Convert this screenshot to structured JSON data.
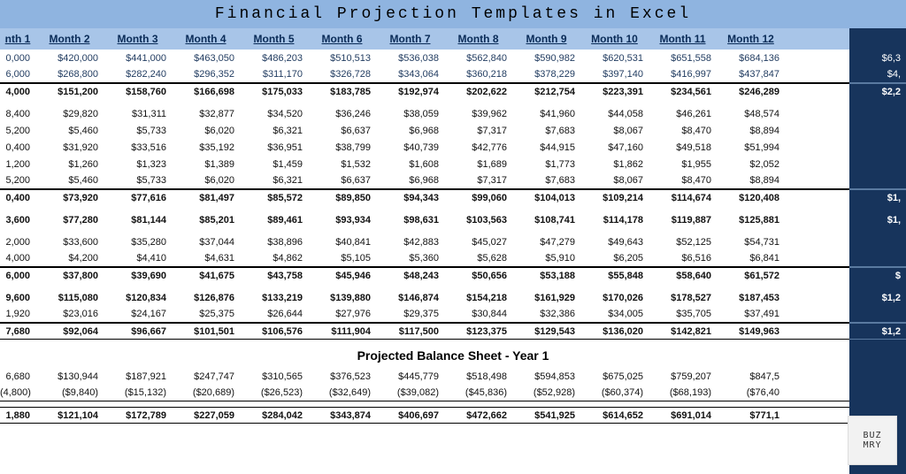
{
  "title": "Financial Projection Templates in Excel",
  "colors": {
    "title_bg": "#8fb4e0",
    "header_bg": "#a8c5e8",
    "right_panel_bg": "#17345c",
    "header_text": "#092b57"
  },
  "font": {
    "title_family": "Courier New",
    "title_size": 18,
    "body_size": 11,
    "header_size": 12
  },
  "months": [
    "nth 1",
    "Month 2",
    "Month 3",
    "Month 4",
    "Month 5",
    "Month 6",
    "Month 7",
    "Month 8",
    "Month 9",
    "Month 10",
    "Month 11",
    "Month 12"
  ],
  "section2_title": "Projected Balance Sheet - Year 1",
  "logo_text": "BUZ\nMRY",
  "rows_main": [
    {
      "c": [
        "0,000",
        "$420,000",
        "$441,000",
        "$463,050",
        "$486,203",
        "$510,513",
        "$536,038",
        "$562,840",
        "$590,982",
        "$620,531",
        "$651,558",
        "$684,136"
      ],
      "r": "$6,3",
      "blue": true
    },
    {
      "c": [
        "6,000",
        "$268,800",
        "$282,240",
        "$296,352",
        "$311,170",
        "$326,728",
        "$343,064",
        "$360,218",
        "$378,229",
        "$397,140",
        "$416,997",
        "$437,847"
      ],
      "r": "$4,",
      "blue": true,
      "bb": true
    },
    {
      "c": [
        "4,000",
        "$151,200",
        "$158,760",
        "$166,698",
        "$175,033",
        "$183,785",
        "$192,974",
        "$202,622",
        "$212,754",
        "$223,391",
        "$234,561",
        "$246,289"
      ],
      "r": "$2,2",
      "bold": true,
      "bt": true,
      "gapAfter": 6
    },
    {
      "c": [
        "8,400",
        "$29,820",
        "$31,311",
        "$32,877",
        "$34,520",
        "$36,246",
        "$38,059",
        "$39,962",
        "$41,960",
        "$44,058",
        "$46,261",
        "$48,574"
      ],
      "r": ""
    },
    {
      "c": [
        "5,200",
        "$5,460",
        "$5,733",
        "$6,020",
        "$6,321",
        "$6,637",
        "$6,968",
        "$7,317",
        "$7,683",
        "$8,067",
        "$8,470",
        "$8,894"
      ],
      "r": ""
    },
    {
      "c": [
        "0,400",
        "$31,920",
        "$33,516",
        "$35,192",
        "$36,951",
        "$38,799",
        "$40,739",
        "$42,776",
        "$44,915",
        "$47,160",
        "$49,518",
        "$51,994"
      ],
      "r": ""
    },
    {
      "c": [
        "1,200",
        "$1,260",
        "$1,323",
        "$1,389",
        "$1,459",
        "$1,532",
        "$1,608",
        "$1,689",
        "$1,773",
        "$1,862",
        "$1,955",
        "$2,052"
      ],
      "r": ""
    },
    {
      "c": [
        "5,200",
        "$5,460",
        "$5,733",
        "$6,020",
        "$6,321",
        "$6,637",
        "$6,968",
        "$7,317",
        "$7,683",
        "$8,067",
        "$8,470",
        "$8,894"
      ],
      "r": "",
      "bb": true
    },
    {
      "c": [
        "0,400",
        "$73,920",
        "$77,616",
        "$81,497",
        "$85,572",
        "$89,850",
        "$94,343",
        "$99,060",
        "$104,013",
        "$109,214",
        "$114,674",
        "$120,408"
      ],
      "r": "$1,",
      "bold": true,
      "bt": true,
      "gapAfter": 6
    },
    {
      "c": [
        "3,600",
        "$77,280",
        "$81,144",
        "$85,201",
        "$89,461",
        "$93,934",
        "$98,631",
        "$103,563",
        "$108,741",
        "$114,178",
        "$119,887",
        "$125,881"
      ],
      "r": "$1,",
      "bold": true,
      "gapAfter": 6
    },
    {
      "c": [
        "2,000",
        "$33,600",
        "$35,280",
        "$37,044",
        "$38,896",
        "$40,841",
        "$42,883",
        "$45,027",
        "$47,279",
        "$49,643",
        "$52,125",
        "$54,731"
      ],
      "r": ""
    },
    {
      "c": [
        "4,000",
        "$4,200",
        "$4,410",
        "$4,631",
        "$4,862",
        "$5,105",
        "$5,360",
        "$5,628",
        "$5,910",
        "$6,205",
        "$6,516",
        "$6,841"
      ],
      "r": "",
      "bb": true
    },
    {
      "c": [
        "6,000",
        "$37,800",
        "$39,690",
        "$41,675",
        "$43,758",
        "$45,946",
        "$48,243",
        "$50,656",
        "$53,188",
        "$55,848",
        "$58,640",
        "$61,572"
      ],
      "r": "$",
      "bold": true,
      "bt": true,
      "gapAfter": 6
    },
    {
      "c": [
        "9,600",
        "$115,080",
        "$120,834",
        "$126,876",
        "$133,219",
        "$139,880",
        "$146,874",
        "$154,218",
        "$161,929",
        "$170,026",
        "$178,527",
        "$187,453"
      ],
      "r": "$1,2",
      "bold": true
    },
    {
      "c": [
        "1,920",
        "$23,016",
        "$24,167",
        "$25,375",
        "$26,644",
        "$27,976",
        "$29,375",
        "$30,844",
        "$32,386",
        "$34,005",
        "$35,705",
        "$37,491"
      ],
      "r": "",
      "bb": true
    },
    {
      "c": [
        "7,680",
        "$92,064",
        "$96,667",
        "$101,501",
        "$106,576",
        "$111,904",
        "$117,500",
        "$123,375",
        "$129,543",
        "$136,020",
        "$142,821",
        "$149,963"
      ],
      "r": "$1,2",
      "bold": true,
      "bt": true,
      "bb": true
    }
  ],
  "rows_balance": [
    {
      "c": [
        "6,680",
        "$130,944",
        "$187,921",
        "$247,747",
        "$310,565",
        "$376,523",
        "$445,779",
        "$518,498",
        "$594,853",
        "$675,025",
        "$759,207",
        "$847,5"
      ],
      "r": ""
    },
    {
      "c": [
        "(4,800)",
        "($9,840)",
        "($15,132)",
        "($20,689)",
        "($26,523)",
        "($32,649)",
        "($39,082)",
        "($45,836)",
        "($52,928)",
        "($60,374)",
        "($68,193)",
        "($76,40"
      ],
      "r": "",
      "bb": true,
      "gapAfter": 6
    },
    {
      "c": [
        "1,880",
        "$121,104",
        "$172,789",
        "$227,059",
        "$284,042",
        "$343,874",
        "$406,697",
        "$472,662",
        "$541,925",
        "$614,652",
        "$691,014",
        "$771,1"
      ],
      "r": "",
      "bold": true,
      "bt": true,
      "bb": true
    }
  ]
}
